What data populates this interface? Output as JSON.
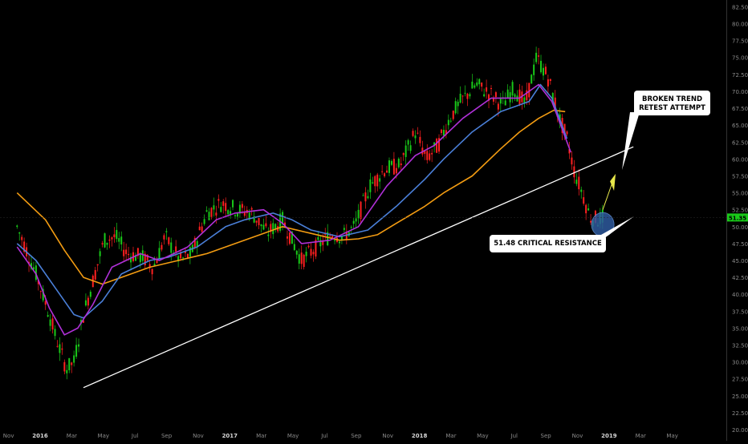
{
  "chart_data": {
    "type": "candlestick",
    "xlabel": "",
    "ylabel": "",
    "ylim": [
      20.0,
      83.5
    ],
    "y_ticks": [
      82.5,
      80.0,
      77.5,
      75.0,
      72.5,
      70.0,
      67.5,
      65.0,
      62.5,
      60.0,
      57.5,
      55.0,
      52.5,
      50.0,
      47.5,
      45.0,
      42.5,
      40.0,
      37.5,
      35.0,
      32.5,
      30.0,
      27.5,
      25.0,
      22.5,
      20.0
    ],
    "x_tick_labels": [
      "Nov",
      "2016",
      "Mar",
      "May",
      "Jul",
      "Sep",
      "Nov",
      "2017",
      "Mar",
      "May",
      "Jul",
      "Sep",
      "Nov",
      "2018",
      "Mar",
      "May",
      "Jul",
      "Sep",
      "Nov",
      "2019",
      "Mar",
      "May"
    ],
    "last_price": "51.35",
    "colors": {
      "background": "#000000",
      "up_candle": "#19c919",
      "down_candle": "#ff2020",
      "ma_orange": "#f39c12",
      "ma_blue": "#4a7fd8",
      "ma_purple": "#b030d8",
      "trendline": "#ffffff",
      "price_label": "#19c919",
      "arrow": "#e8e84a",
      "ellipse": "#2e5a9e"
    },
    "trendline": {
      "x": [
        2016.15,
        2019.05
      ],
      "y": [
        26.2,
        61.8
      ]
    },
    "close_path": {
      "x": [
        2015.8,
        2015.9,
        2015.97,
        2016.0,
        2016.06,
        2016.1,
        2016.15,
        2016.2,
        2016.26,
        2016.32,
        2016.38,
        2016.46,
        2016.52,
        2016.58,
        2016.66,
        2016.72,
        2016.8,
        2016.88,
        2016.96,
        2017.04,
        2017.12,
        2017.2,
        2017.3,
        2017.4,
        2017.46,
        2017.52,
        2017.58,
        2017.66,
        2017.74,
        2017.82,
        2017.9,
        2017.96,
        2018.02,
        2018.08,
        2018.14,
        2018.22,
        2018.3,
        2018.36,
        2018.42,
        2018.48,
        2018.54,
        2018.6,
        2018.66,
        2018.7,
        2018.74,
        2018.78,
        2018.82,
        2018.86,
        2018.89
      ],
      "y": [
        50.0,
        43.0,
        37.0,
        34.0,
        29.0,
        30.0,
        37.0,
        42.0,
        48.0,
        48.5,
        46.0,
        45.5,
        44.0,
        48.5,
        45.0,
        46.0,
        52.0,
        53.5,
        52.5,
        52.0,
        49.0,
        51.0,
        45.0,
        47.5,
        49.0,
        48.5,
        50.0,
        56.0,
        58.5,
        59.0,
        64.0,
        60.0,
        62.0,
        66.0,
        68.5,
        71.0,
        69.5,
        68.0,
        70.5,
        68.0,
        75.0,
        72.0,
        66.0,
        63.0,
        58.0,
        55.0,
        51.5,
        51.0,
        51.4
      ]
    },
    "moving_averages": [
      {
        "color_key": "ma_orange",
        "x": [
          2015.8,
          2015.95,
          2016.05,
          2016.15,
          2016.25,
          2016.35,
          2016.5,
          2016.65,
          2016.8,
          2016.95,
          2017.1,
          2017.2,
          2017.35,
          2017.5,
          2017.6,
          2017.7,
          2017.8,
          2017.95,
          2018.05,
          2018.2,
          2018.35,
          2018.45,
          2018.55,
          2018.63,
          2018.69
        ],
        "y": [
          55.0,
          51.0,
          46.5,
          42.5,
          41.5,
          42.5,
          44.0,
          45.0,
          46.0,
          47.5,
          49.0,
          50.0,
          49.0,
          48.0,
          48.2,
          48.8,
          50.5,
          53.0,
          55.0,
          57.5,
          61.5,
          64.0,
          66.0,
          67.2,
          67.0
        ]
      },
      {
        "color_key": "ma_blue",
        "x": [
          2015.8,
          2015.9,
          2016.0,
          2016.1,
          2016.15,
          2016.25,
          2016.35,
          2016.5,
          2016.6,
          2016.75,
          2016.9,
          2017.0,
          2017.15,
          2017.25,
          2017.35,
          2017.5,
          2017.65,
          2017.8,
          2017.95,
          2018.05,
          2018.2,
          2018.35,
          2018.5,
          2018.56,
          2018.62,
          2018.7
        ],
        "y": [
          47.5,
          45.0,
          41.0,
          37.0,
          36.5,
          39.0,
          43.0,
          45.0,
          45.5,
          47.0,
          50.0,
          51.0,
          52.0,
          51.0,
          49.5,
          48.5,
          49.5,
          53.0,
          57.0,
          60.0,
          64.0,
          67.0,
          68.5,
          71.0,
          69.0,
          63.0
        ]
      },
      {
        "color_key": "ma_purple",
        "x": [
          2015.8,
          2015.9,
          2015.97,
          2016.05,
          2016.12,
          2016.2,
          2016.3,
          2016.45,
          2016.55,
          2016.7,
          2016.85,
          2016.95,
          2017.1,
          2017.2,
          2017.3,
          2017.45,
          2017.6,
          2017.75,
          2017.9,
          2018.0,
          2018.15,
          2018.3,
          2018.45,
          2018.55,
          2018.62,
          2018.72
        ],
        "y": [
          47.0,
          43.0,
          38.0,
          34.0,
          35.0,
          38.5,
          44.0,
          46.0,
          45.0,
          47.0,
          51.0,
          52.0,
          52.5,
          50.5,
          47.5,
          48.0,
          50.0,
          56.0,
          60.5,
          62.0,
          66.0,
          69.0,
          69.0,
          71.0,
          68.5,
          61.0
        ]
      }
    ],
    "annotations": [
      {
        "name": "broken-trend-label",
        "lines": [
          "BROKEN TREND",
          "RETEST ATTEMPT"
        ]
      },
      {
        "name": "critical-resistance-label",
        "lines": [
          "51.48 CRITICAL RESISTANCE"
        ]
      }
    ]
  }
}
